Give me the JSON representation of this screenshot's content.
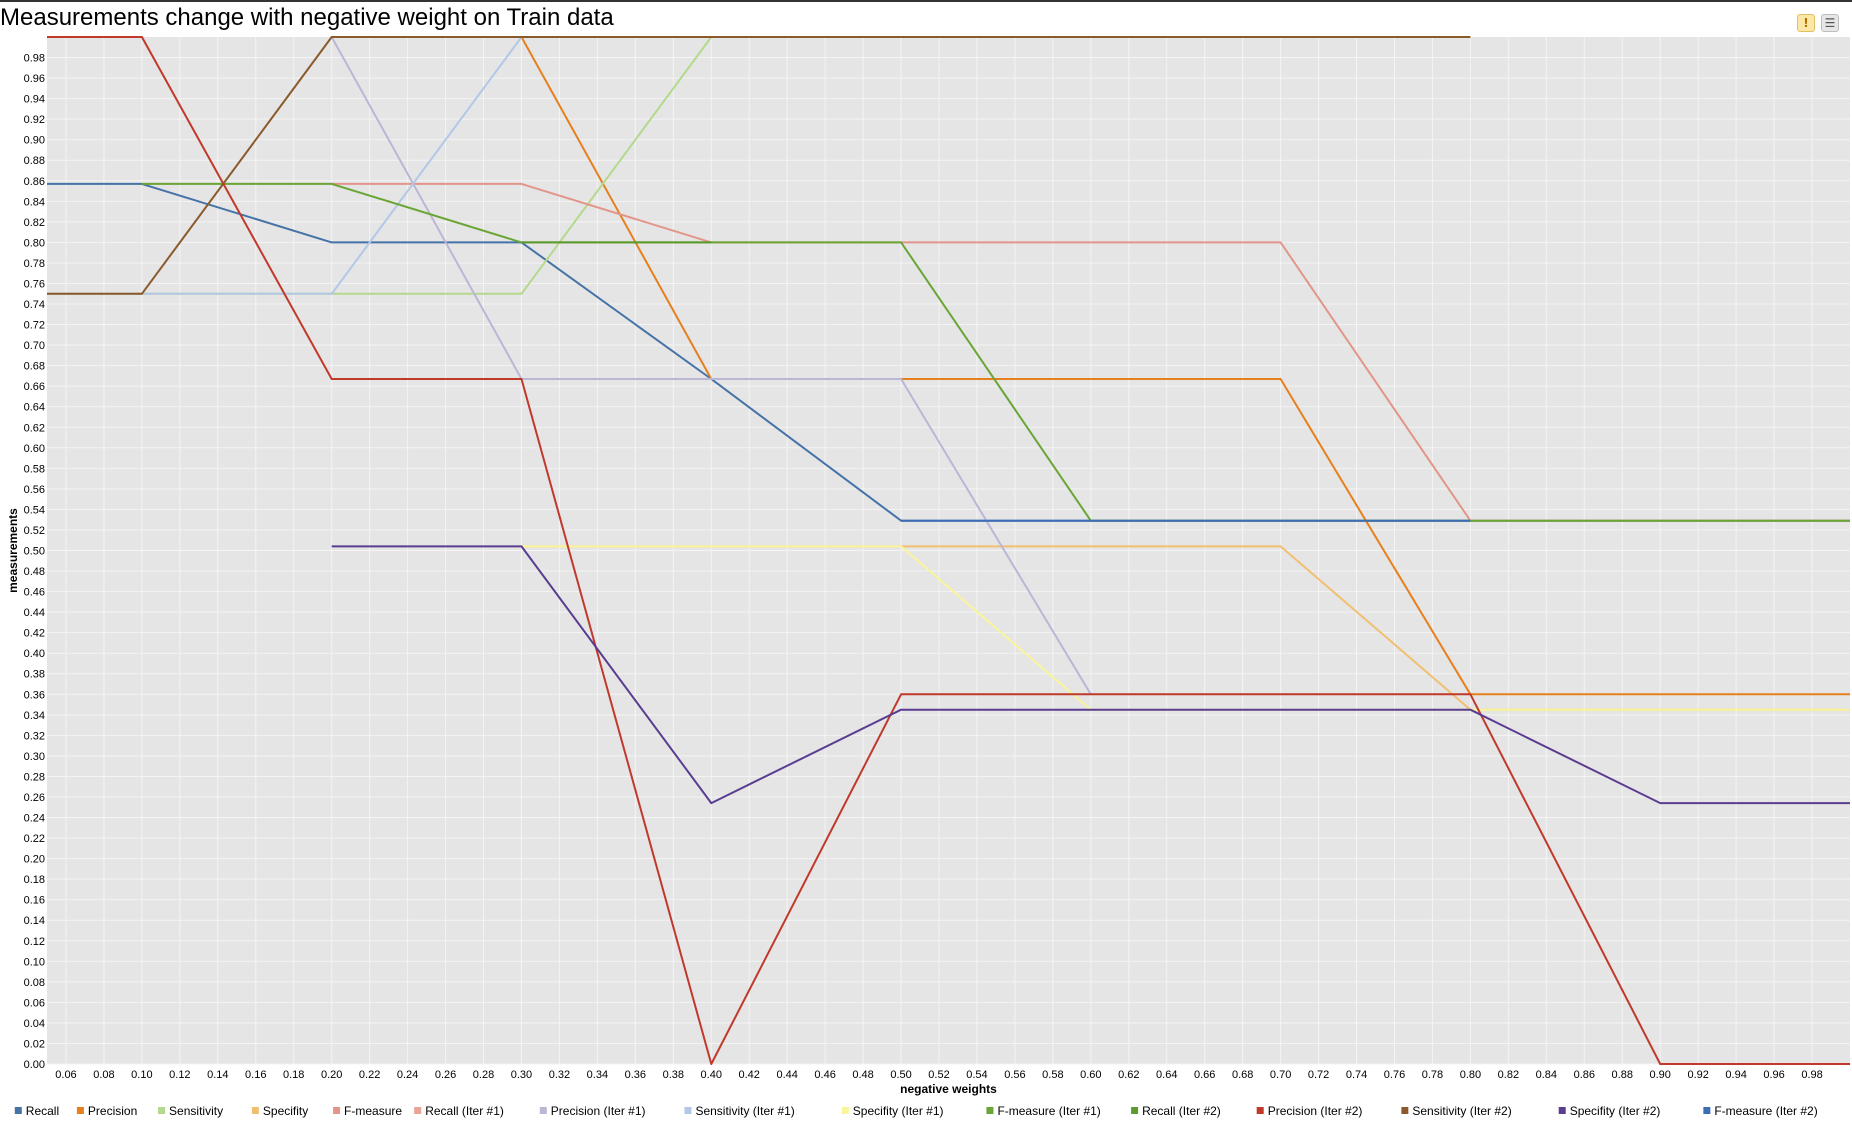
{
  "window": {
    "title": "Measurements change with negative weight on Train data",
    "toolbar_icons": [
      "warning-icon",
      "menu-icon"
    ]
  },
  "chart_data": {
    "type": "line",
    "title": "Measurements change with negative weight on Train data",
    "xlabel": "negative weights",
    "ylabel": "measurements",
    "xlim": [
      0.05,
      1.0
    ],
    "ylim": [
      0.0,
      1.0
    ],
    "x_ticks": [
      0.06,
      0.08,
      0.1,
      0.12,
      0.14,
      0.16,
      0.18,
      0.2,
      0.22,
      0.24,
      0.26,
      0.28,
      0.3,
      0.32,
      0.34,
      0.36,
      0.38,
      0.4,
      0.42,
      0.44,
      0.46,
      0.48,
      0.5,
      0.52,
      0.54,
      0.56,
      0.58,
      0.6,
      0.62,
      0.64,
      0.66,
      0.68,
      0.7,
      0.72,
      0.74,
      0.76,
      0.78,
      0.8,
      0.82,
      0.84,
      0.86,
      0.88,
      0.9,
      0.92,
      0.94,
      0.96,
      0.98
    ],
    "y_ticks": [
      0.0,
      0.02,
      0.04,
      0.06,
      0.08,
      0.1,
      0.12,
      0.14,
      0.16,
      0.18,
      0.2,
      0.22,
      0.24,
      0.26,
      0.28,
      0.3,
      0.32,
      0.34,
      0.36,
      0.38,
      0.4,
      0.42,
      0.44,
      0.46,
      0.48,
      0.5,
      0.52,
      0.54,
      0.56,
      0.58,
      0.6,
      0.62,
      0.64,
      0.66,
      0.68,
      0.7,
      0.72,
      0.74,
      0.76,
      0.78,
      0.8,
      0.82,
      0.84,
      0.86,
      0.88,
      0.9,
      0.92,
      0.94,
      0.96,
      0.98
    ],
    "grid": true,
    "legend_position": "bottom",
    "background": "#e5e5e5",
    "series": [
      {
        "name": "Recall",
        "color": "#4572a7",
        "points": [
          [
            0.05,
            0.857
          ],
          [
            0.1,
            0.857
          ],
          [
            0.2,
            0.8
          ],
          [
            0.3,
            0.8
          ],
          [
            0.4,
            0.667
          ],
          [
            0.5,
            0.529
          ],
          [
            1.0,
            0.529
          ]
        ]
      },
      {
        "name": "Precision",
        "color": "#e6801e",
        "points": [
          [
            0.3,
            1.0
          ],
          [
            0.4,
            0.667
          ],
          [
            0.5,
            0.667
          ],
          [
            0.7,
            0.667
          ],
          [
            0.8,
            0.36
          ],
          [
            1.0,
            0.36
          ]
        ]
      },
      {
        "name": "Sensitivity",
        "color": "#b5d98c",
        "points": [
          [
            0.05,
            0.75
          ],
          [
            0.1,
            0.75
          ],
          [
            0.2,
            0.75
          ],
          [
            0.3,
            0.75
          ],
          [
            0.4,
            1.0
          ],
          [
            0.8,
            1.0
          ]
        ]
      },
      {
        "name": "Specifity",
        "color": "#f2bf70",
        "points": [
          [
            0.3,
            0.504
          ],
          [
            0.4,
            0.504
          ],
          [
            0.5,
            0.504
          ],
          [
            0.7,
            0.504
          ],
          [
            0.8,
            0.345
          ],
          [
            1.0,
            0.345
          ]
        ]
      },
      {
        "name": "F-measure",
        "color": "#e3958a",
        "points": [
          [
            0.2,
            0.857
          ],
          [
            0.3,
            0.857
          ],
          [
            0.4,
            0.8
          ],
          [
            0.5,
            0.8
          ],
          [
            0.7,
            0.8
          ],
          [
            0.8,
            0.529
          ],
          [
            1.0,
            0.529
          ]
        ]
      },
      {
        "name": "Recall (Iter #1)",
        "color": "#eaa397",
        "points": [
          [
            0.4,
            0.667
          ],
          [
            0.5,
            0.667
          ]
        ]
      },
      {
        "name": "Precision (Iter #1)",
        "color": "#bcb6d6",
        "points": [
          [
            0.2,
            1.0
          ],
          [
            0.3,
            0.667
          ],
          [
            0.4,
            0.667
          ],
          [
            0.5,
            0.667
          ],
          [
            0.6,
            0.36
          ]
        ]
      },
      {
        "name": "Sensitivity (Iter #1)",
        "color": "#b3c8e6",
        "points": [
          [
            0.05,
            0.75
          ],
          [
            0.1,
            0.75
          ],
          [
            0.2,
            0.75
          ],
          [
            0.3,
            1.0
          ]
        ]
      },
      {
        "name": "Specifity (Iter #1)",
        "color": "#f9f59a",
        "points": [
          [
            0.3,
            0.504
          ],
          [
            0.4,
            0.504
          ],
          [
            0.5,
            0.504
          ],
          [
            0.6,
            0.345
          ],
          [
            1.0,
            0.345
          ]
        ]
      },
      {
        "name": "F-measure (Iter #1)",
        "color": "#6aa535",
        "points": [
          [
            0.1,
            0.857
          ],
          [
            0.2,
            0.857
          ],
          [
            0.3,
            0.8
          ],
          [
            0.4,
            0.8
          ],
          [
            0.5,
            0.8
          ],
          [
            0.6,
            0.529
          ],
          [
            1.0,
            0.529
          ]
        ]
      },
      {
        "name": "Recall (Iter #2)",
        "color": "#5e9a2e",
        "points": [
          [
            0.3,
            0.8
          ],
          [
            0.4,
            0.8
          ]
        ]
      },
      {
        "name": "Precision (Iter #2)",
        "color": "#c0392b",
        "points": [
          [
            0.05,
            1.0
          ],
          [
            0.1,
            1.0
          ],
          [
            0.2,
            0.667
          ],
          [
            0.3,
            0.667
          ],
          [
            0.4,
            0.0
          ],
          [
            0.5,
            0.36
          ],
          [
            0.8,
            0.36
          ],
          [
            0.9,
            0.0
          ],
          [
            1.0,
            0.0
          ]
        ]
      },
      {
        "name": "Sensitivity (Iter #2)",
        "color": "#8b5a2b",
        "points": [
          [
            0.05,
            0.75
          ],
          [
            0.1,
            0.75
          ],
          [
            0.2,
            1.0
          ],
          [
            0.8,
            1.0
          ]
        ]
      },
      {
        "name": "Specifity (Iter #2)",
        "color": "#5a3d91",
        "points": [
          [
            0.2,
            0.504
          ],
          [
            0.3,
            0.504
          ],
          [
            0.4,
            0.254
          ],
          [
            0.5,
            0.345
          ],
          [
            0.8,
            0.345
          ],
          [
            0.9,
            0.254
          ],
          [
            1.0,
            0.254
          ]
        ]
      },
      {
        "name": "F-measure (Iter #2)",
        "color": "#3d6eb5",
        "points": [
          [
            0.5,
            0.529
          ],
          [
            0.8,
            0.529
          ]
        ]
      }
    ]
  }
}
